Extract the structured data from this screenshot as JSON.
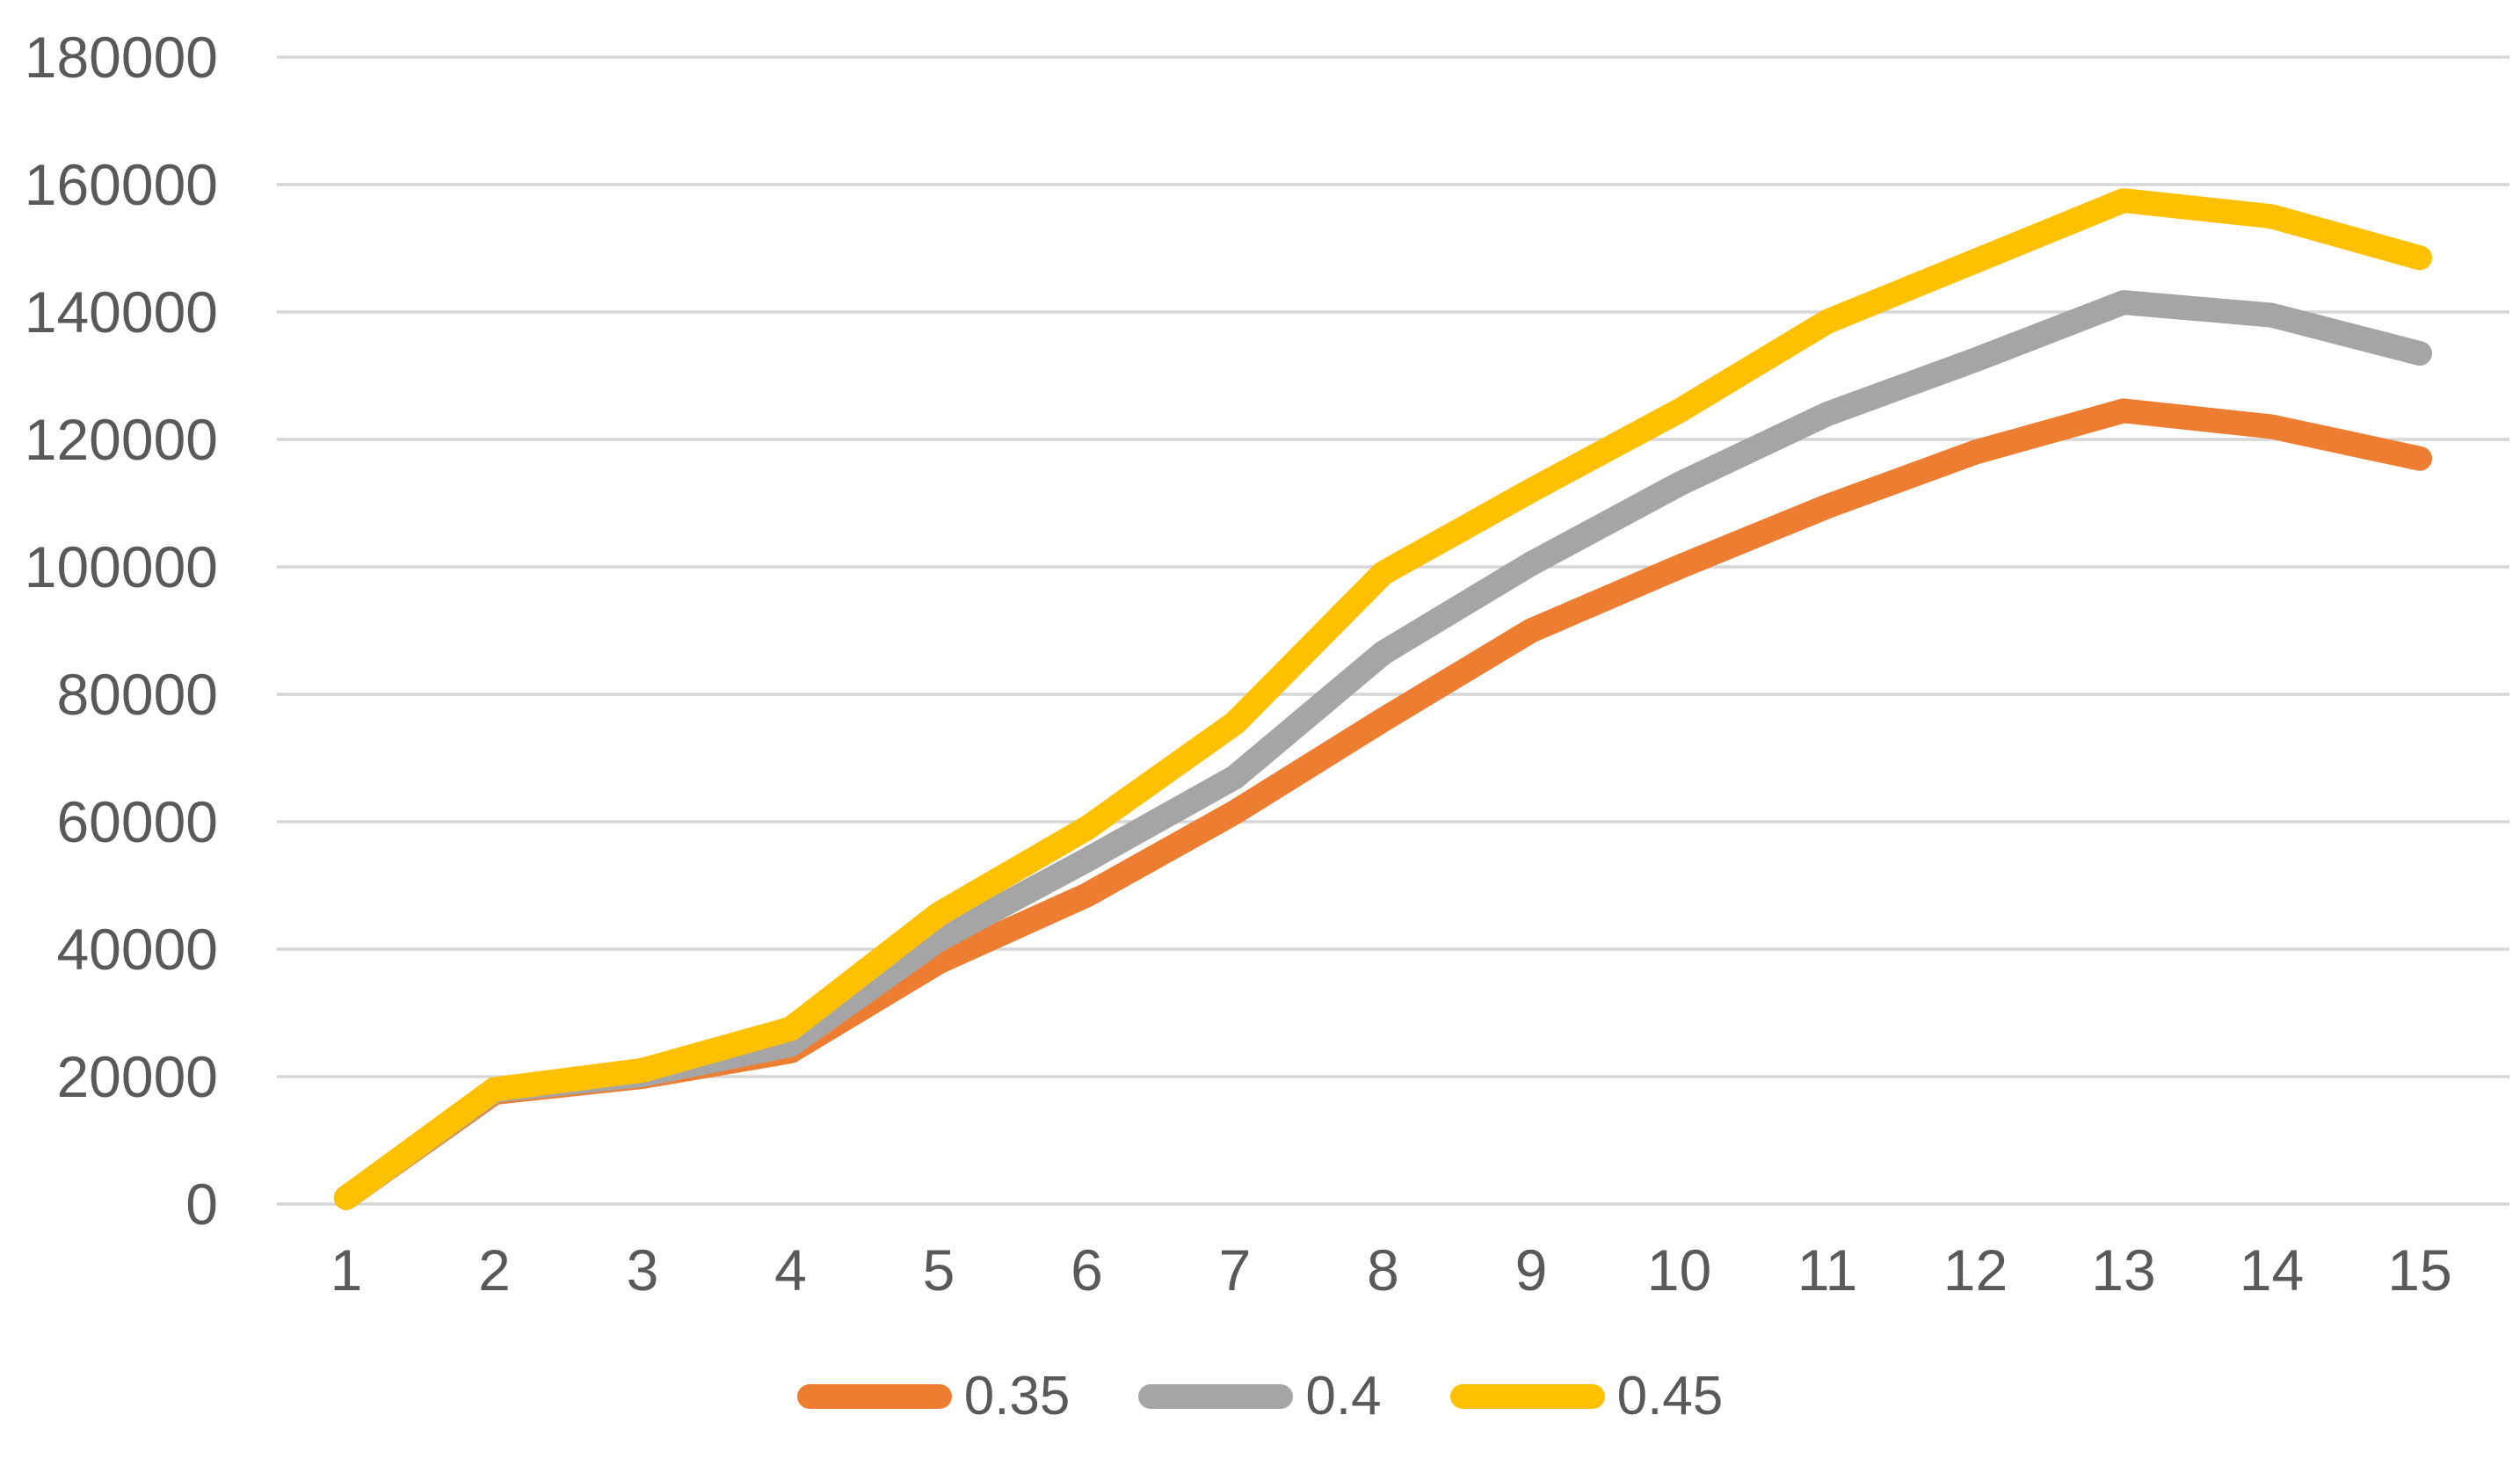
{
  "chart_data": {
    "type": "line",
    "title": "",
    "xlabel": "",
    "ylabel": "",
    "categories": [
      "1",
      "2",
      "3",
      "4",
      "5",
      "6",
      "7",
      "8",
      "9",
      "10",
      "11",
      "12",
      "13",
      "14",
      "15"
    ],
    "series": [
      {
        "name": "0.35",
        "color": "#ED7D31",
        "values": [
          1000,
          17500,
          20000,
          24000,
          38000,
          48500,
          61500,
          76000,
          90000,
          100000,
          109500,
          118000,
          124500,
          122000,
          117000
        ]
      },
      {
        "name": "0.4",
        "color": "#A5A5A5",
        "values": [
          1000,
          17800,
          20300,
          25000,
          41500,
          54000,
          67000,
          86500,
          100500,
          113000,
          124000,
          132500,
          141500,
          139500,
          133500
        ]
      },
      {
        "name": "0.45",
        "color": "#FFC000",
        "values": [
          1000,
          18000,
          21000,
          27500,
          45500,
          59000,
          75500,
          99000,
          112000,
          124500,
          138500,
          148000,
          157500,
          155000,
          148500
        ]
      }
    ],
    "ylim": [
      0,
      180000
    ],
    "y_tick_step": 20000,
    "y_ticks": [
      0,
      20000,
      40000,
      60000,
      80000,
      100000,
      120000,
      140000,
      160000,
      180000
    ],
    "grid": "horizontal-only",
    "legend_position": "bottom-center",
    "colors": {
      "gridline": "#D6D6D6",
      "axis_label": "#595959",
      "background": "#FFFFFF"
    },
    "line_width": 28
  },
  "layout_note": "no chart title, no axis lines, rounded line caps"
}
